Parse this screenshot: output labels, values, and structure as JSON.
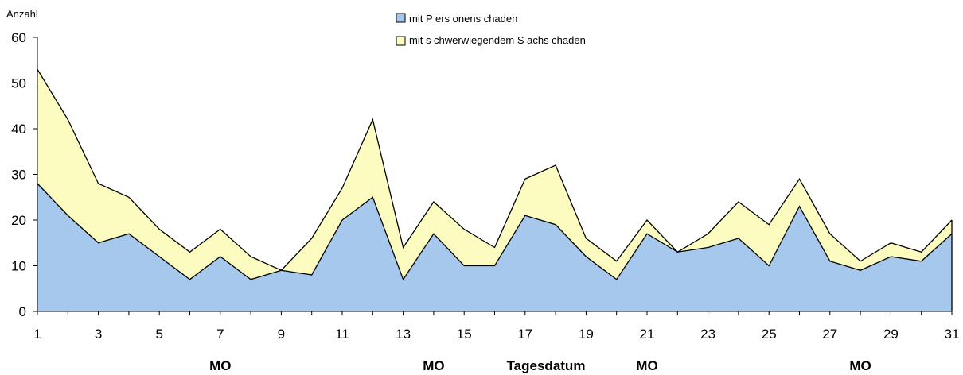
{
  "chart_data": {
    "type": "area",
    "stacked": true,
    "ylabel": "Anzahl",
    "xlabel": "Tagesdatum",
    "ylim": [
      0,
      60
    ],
    "yticks": [
      0,
      10,
      20,
      30,
      40,
      50,
      60
    ],
    "xticks": [
      1,
      3,
      5,
      7,
      9,
      11,
      13,
      15,
      17,
      19,
      21,
      23,
      25,
      27,
      29,
      31
    ],
    "x": [
      1,
      2,
      3,
      4,
      5,
      6,
      7,
      8,
      9,
      10,
      11,
      12,
      13,
      14,
      15,
      16,
      17,
      18,
      19,
      20,
      21,
      22,
      23,
      24,
      25,
      26,
      27,
      28,
      29,
      30,
      31
    ],
    "legend_position": "top",
    "series": [
      {
        "name": "mit P ers onens chaden",
        "color": "#a6c8ec",
        "values": [
          28,
          21,
          15,
          17,
          12,
          7,
          12,
          7,
          9,
          8,
          20,
          25,
          7,
          17,
          10,
          10,
          21,
          19,
          12,
          7,
          17,
          13,
          14,
          16,
          10,
          23,
          11,
          9,
          12,
          11,
          17
        ]
      },
      {
        "name": "mit s chwerwiegendem S achs chaden",
        "color": "#fcfcc0",
        "values": [
          25,
          21,
          13,
          8,
          6,
          6,
          6,
          5,
          0,
          8,
          7,
          17,
          7,
          7,
          8,
          4,
          8,
          13,
          4,
          4,
          3,
          0,
          3,
          8,
          9,
          6,
          6,
          2,
          3,
          2,
          3
        ]
      }
    ],
    "annotations": [
      {
        "text": "MO",
        "x": 7
      },
      {
        "text": "MO",
        "x": 14
      },
      {
        "text": "MO",
        "x": 21
      },
      {
        "text": "MO",
        "x": 28
      }
    ],
    "grid": false
  }
}
